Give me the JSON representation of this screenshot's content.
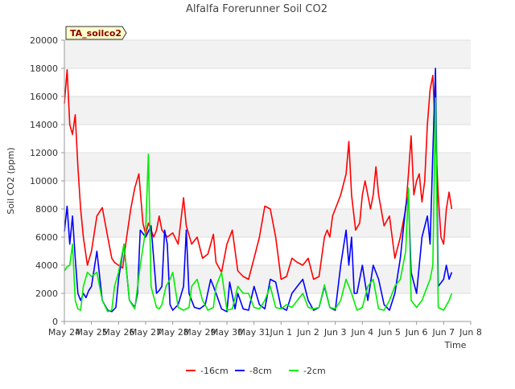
{
  "chart_data": {
    "type": "line",
    "title": "Alfalfa Forerunner Soil CO2",
    "xlabel": "Time",
    "ylabel": "Soil CO2 (ppm)",
    "annotation": "TA_soilco2",
    "ylim": [
      0,
      20000
    ],
    "xlim": [
      0,
      15
    ],
    "yticks": [
      0,
      2000,
      4000,
      6000,
      8000,
      10000,
      12000,
      14000,
      16000,
      18000,
      20000
    ],
    "xticks": [
      {
        "x": 0,
        "label": "May 24"
      },
      {
        "x": 1,
        "label": "May 25"
      },
      {
        "x": 2,
        "label": "May 26"
      },
      {
        "x": 3,
        "label": "May 27"
      },
      {
        "x": 4,
        "label": "May 28"
      },
      {
        "x": 5,
        "label": "May 29"
      },
      {
        "x": 6,
        "label": "May 30"
      },
      {
        "x": 7,
        "label": "May 31"
      },
      {
        "x": 8,
        "label": "Jun 1"
      },
      {
        "x": 9,
        "label": "Jun 2"
      },
      {
        "x": 10,
        "label": "Jun 3"
      },
      {
        "x": 11,
        "label": "Jun 4"
      },
      {
        "x": 12,
        "label": "Jun 5"
      },
      {
        "x": 13,
        "label": "Jun 6"
      },
      {
        "x": 14,
        "label": "Jun 7"
      },
      {
        "x": 15,
        "label": "Jun 8"
      }
    ],
    "x_unit_note": "x values are days elapsed from May 24",
    "grid": true,
    "legend_position": "bottom",
    "series": [
      {
        "name": "-16cm",
        "color": "#ff0000",
        "x": [
          0.0,
          0.1,
          0.2,
          0.3,
          0.4,
          0.5,
          0.6,
          0.7,
          0.85,
          1.0,
          1.2,
          1.4,
          1.6,
          1.75,
          1.85,
          2.0,
          2.15,
          2.3,
          2.45,
          2.6,
          2.75,
          2.9,
          3.0,
          3.1,
          3.3,
          3.4,
          3.5,
          3.6,
          3.8,
          4.0,
          4.2,
          4.4,
          4.5,
          4.7,
          4.9,
          5.1,
          5.3,
          5.5,
          5.6,
          5.8,
          6.0,
          6.2,
          6.4,
          6.6,
          6.8,
          7.0,
          7.2,
          7.4,
          7.6,
          7.8,
          7.9,
          8.0,
          8.2,
          8.4,
          8.6,
          8.8,
          9.0,
          9.2,
          9.4,
          9.6,
          9.7,
          9.8,
          9.9,
          10.0,
          10.2,
          10.4,
          10.5,
          10.6,
          10.75,
          10.9,
          11.0,
          11.1,
          11.3,
          11.4,
          11.5,
          11.6,
          11.8,
          12.0,
          12.2,
          12.4,
          12.5,
          12.6,
          12.7,
          12.8,
          12.9,
          13.0,
          13.1,
          13.2,
          13.3,
          13.4,
          13.5,
          13.6,
          13.7,
          13.8,
          13.9,
          14.0,
          14.1,
          14.2,
          14.3
        ],
        "y": [
          15500,
          17900,
          14000,
          13300,
          14700,
          11000,
          8000,
          6000,
          4000,
          5000,
          7500,
          8100,
          6000,
          4500,
          4200,
          4000,
          3800,
          6000,
          8000,
          9500,
          10500,
          7000,
          6200,
          7000,
          6000,
          6500,
          7500,
          6500,
          6000,
          6300,
          5500,
          8800,
          6800,
          5500,
          6000,
          4500,
          4800,
          6200,
          4200,
          3500,
          5500,
          6500,
          3600,
          3200,
          3000,
          4500,
          6000,
          8200,
          8000,
          6000,
          4500,
          3000,
          3200,
          4500,
          4200,
          4000,
          4500,
          3000,
          3200,
          6000,
          6500,
          6000,
          7500,
          8000,
          9000,
          10500,
          12800,
          9000,
          6500,
          7000,
          9000,
          10000,
          8000,
          9000,
          11000,
          9000,
          6800,
          7500,
          4500,
          6000,
          7000,
          8000,
          10500,
          13200,
          9000,
          10000,
          10500,
          8500,
          10000,
          14000,
          16500,
          17500,
          13000,
          9000,
          6000,
          5500,
          8000,
          9200,
          8000
        ]
      },
      {
        "name": "-8cm",
        "color": "#0000ff",
        "x": [
          0.0,
          0.1,
          0.2,
          0.3,
          0.4,
          0.5,
          0.6,
          0.7,
          0.8,
          0.9,
          1.0,
          1.2,
          1.4,
          1.6,
          1.75,
          1.9,
          2.0,
          2.2,
          2.4,
          2.6,
          2.7,
          2.8,
          3.0,
          3.2,
          3.4,
          3.5,
          3.6,
          3.7,
          3.8,
          3.9,
          4.0,
          4.2,
          4.4,
          4.5,
          4.6,
          4.7,
          4.8,
          5.0,
          5.2,
          5.4,
          5.6,
          5.8,
          6.0,
          6.1,
          6.3,
          6.4,
          6.6,
          6.8,
          7.0,
          7.2,
          7.4,
          7.6,
          7.8,
          8.0,
          8.2,
          8.4,
          8.6,
          8.8,
          9.0,
          9.2,
          9.4,
          9.6,
          9.8,
          10.0,
          10.2,
          10.4,
          10.5,
          10.6,
          10.7,
          10.8,
          11.0,
          11.2,
          11.4,
          11.6,
          11.8,
          12.0,
          12.2,
          12.4,
          12.6,
          12.7,
          12.8,
          13.0,
          13.2,
          13.4,
          13.5,
          13.6,
          13.7,
          13.8,
          14.0,
          14.1,
          14.2,
          14.3
        ],
        "y": [
          6400,
          8200,
          5500,
          7500,
          4500,
          2000,
          1500,
          2000,
          1700,
          2200,
          2500,
          5000,
          1500,
          800,
          700,
          1000,
          3000,
          5500,
          1500,
          1000,
          2000,
          6500,
          6000,
          6800,
          2000,
          2200,
          2500,
          6500,
          5500,
          1200,
          800,
          1200,
          2500,
          6500,
          2000,
          1500,
          1000,
          900,
          1200,
          3000,
          2000,
          900,
          700,
          2800,
          900,
          2000,
          900,
          800,
          2500,
          1200,
          900,
          3000,
          2800,
          1000,
          800,
          2000,
          2500,
          3000,
          1500,
          800,
          1000,
          2500,
          1000,
          800,
          4000,
          6500,
          4000,
          6000,
          2000,
          2000,
          4000,
          1500,
          4000,
          3000,
          1200,
          800,
          2000,
          4500,
          8200,
          9000,
          3500,
          2000,
          6000,
          7500,
          5500,
          12000,
          18000,
          2500,
          3000,
          4000,
          3000,
          3500
        ]
      },
      {
        "name": "-2cm",
        "color": "#00ee00",
        "x": [
          0.0,
          0.1,
          0.2,
          0.3,
          0.4,
          0.5,
          0.6,
          0.7,
          0.85,
          1.0,
          1.2,
          1.4,
          1.6,
          1.75,
          1.85,
          2.0,
          2.2,
          2.4,
          2.6,
          2.8,
          3.0,
          3.1,
          3.2,
          3.4,
          3.5,
          3.6,
          3.75,
          3.9,
          4.0,
          4.2,
          4.4,
          4.6,
          4.7,
          4.9,
          5.1,
          5.3,
          5.5,
          5.6,
          5.8,
          6.0,
          6.2,
          6.4,
          6.6,
          6.8,
          7.0,
          7.2,
          7.4,
          7.6,
          7.8,
          8.0,
          8.2,
          8.4,
          8.6,
          8.8,
          9.0,
          9.2,
          9.4,
          9.6,
          9.8,
          10.0,
          10.2,
          10.4,
          10.6,
          10.8,
          11.0,
          11.2,
          11.4,
          11.6,
          11.8,
          12.0,
          12.2,
          12.4,
          12.6,
          12.7,
          12.8,
          13.0,
          13.2,
          13.4,
          13.5,
          13.6,
          13.7,
          13.8,
          14.0,
          14.2,
          14.3
        ],
        "y": [
          3600,
          3900,
          4000,
          5500,
          1500,
          900,
          800,
          2500,
          3500,
          3200,
          3500,
          1500,
          700,
          800,
          2500,
          3500,
          5500,
          1500,
          900,
          4000,
          6500,
          11900,
          2500,
          1000,
          900,
          1200,
          2500,
          3000,
          3500,
          1000,
          800,
          1000,
          2500,
          3000,
          1500,
          800,
          1000,
          2500,
          3500,
          800,
          900,
          2500,
          2000,
          2000,
          1000,
          900,
          1500,
          2500,
          1000,
          900,
          1200,
          1000,
          1500,
          2000,
          1000,
          900,
          1000,
          2600,
          1000,
          900,
          1500,
          3000,
          2000,
          800,
          1000,
          2500,
          3000,
          900,
          800,
          1500,
          2500,
          3000,
          5000,
          9500,
          1500,
          1000,
          1500,
          2500,
          3000,
          4000,
          15900,
          1000,
          800,
          1500,
          2000
        ]
      }
    ]
  }
}
